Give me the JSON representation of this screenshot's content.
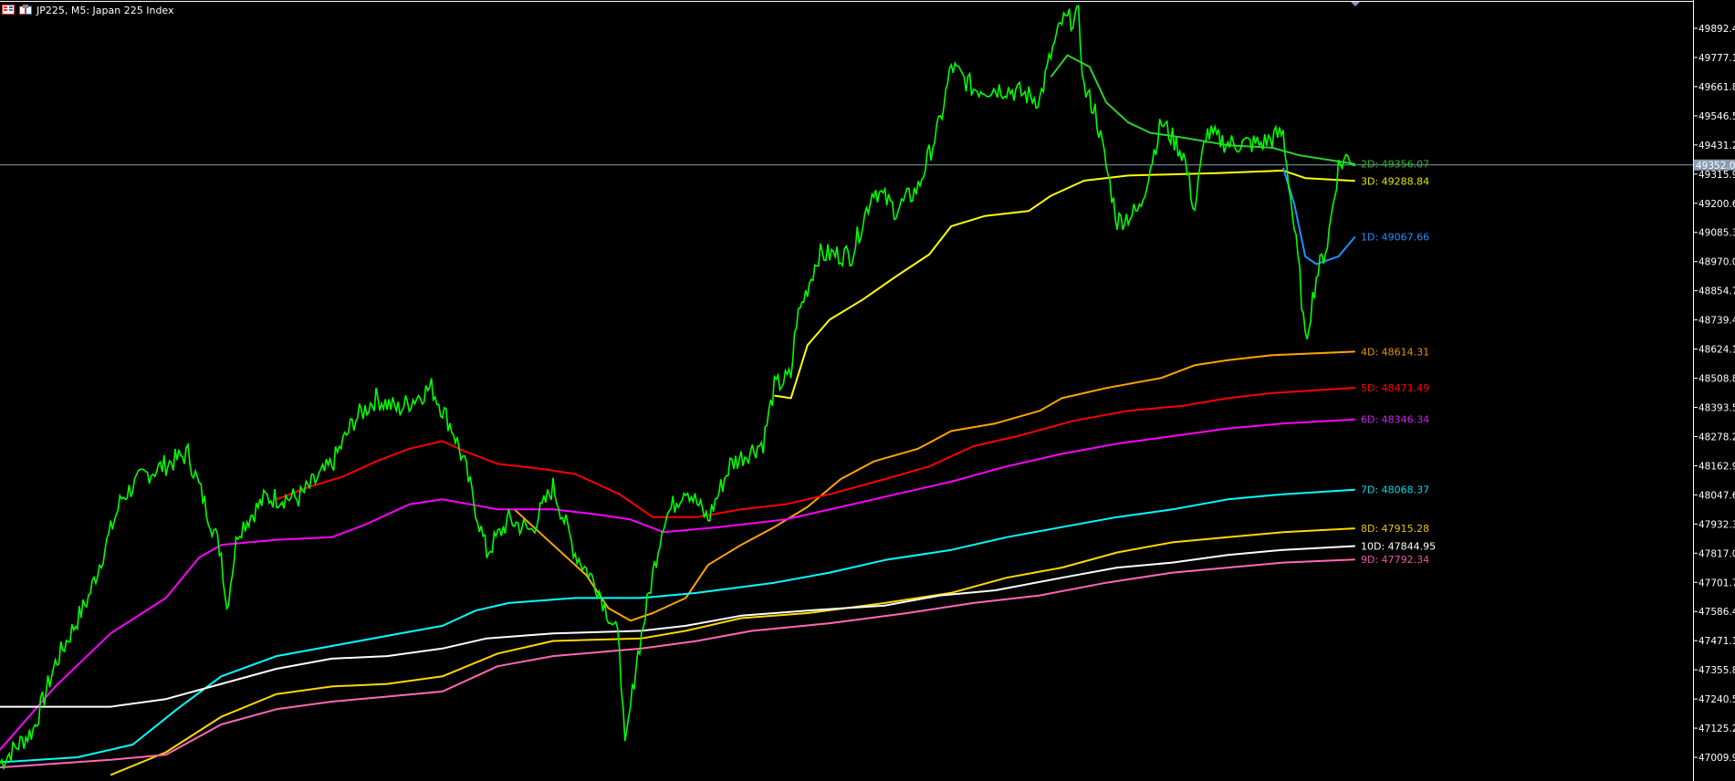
{
  "window": {
    "title": "JP225, M5:  Japan 225 Index"
  },
  "chart_data": {
    "type": "line",
    "title": "JP225, M5:  Japan 225 Index",
    "ylim": [
      46940,
      49990
    ],
    "grid": false,
    "y_ticks": [
      "49892.40",
      "49777.10",
      "49661.80",
      "49546.50",
      "49431.20",
      "49315.90",
      "49200.60",
      "49085.30",
      "48970.00",
      "48854.70",
      "48739.40",
      "48624.10",
      "48508.80",
      "48393.50",
      "48278.20",
      "48162.90",
      "48047.60",
      "47932.30",
      "47817.00",
      "47701.70",
      "47586.40",
      "47471.10",
      "47355.80",
      "47240.50",
      "47125.20",
      "47009.90"
    ],
    "current_price": {
      "label": "49352.00",
      "value": 49352.0,
      "color": "#8a9bb0"
    },
    "price": {
      "color": "#00ff00",
      "points": [
        [
          0,
          46987
        ],
        [
          6,
          47118
        ],
        [
          10,
          47380
        ],
        [
          16,
          47643
        ],
        [
          22,
          48036
        ],
        [
          26,
          48124
        ],
        [
          30,
          48167
        ],
        [
          34,
          48211
        ],
        [
          38,
          47949
        ],
        [
          40,
          47818
        ],
        [
          41,
          47599
        ],
        [
          43,
          47905
        ],
        [
          48,
          48036
        ],
        [
          54,
          48036
        ],
        [
          60,
          48167
        ],
        [
          64,
          48342
        ],
        [
          68,
          48430
        ],
        [
          72,
          48386
        ],
        [
          78,
          48473
        ],
        [
          82,
          48299
        ],
        [
          84,
          48167
        ],
        [
          88,
          47818
        ],
        [
          92,
          47949
        ],
        [
          96,
          47905
        ],
        [
          100,
          48080
        ],
        [
          104,
          47818
        ],
        [
          108,
          47686
        ],
        [
          112,
          47468
        ],
        [
          113,
          47030
        ],
        [
          115,
          47380
        ],
        [
          118,
          47730
        ],
        [
          120,
          47949
        ],
        [
          124,
          48080
        ],
        [
          128,
          47949
        ],
        [
          132,
          48167
        ],
        [
          138,
          48255
        ],
        [
          140,
          48473
        ],
        [
          143,
          48517
        ],
        [
          144,
          48736
        ],
        [
          148,
          48998
        ],
        [
          154,
          48998
        ],
        [
          158,
          49261
        ],
        [
          162,
          49173
        ],
        [
          166,
          49261
        ],
        [
          170,
          49523
        ],
        [
          172,
          49742
        ],
        [
          176,
          49654
        ],
        [
          182,
          49654
        ],
        [
          188,
          49611
        ],
        [
          190,
          49786
        ],
        [
          192,
          49917
        ],
        [
          195,
          49938
        ],
        [
          196,
          49654
        ],
        [
          198,
          49567
        ],
        [
          200,
          49348
        ],
        [
          202,
          49129
        ],
        [
          206,
          49173
        ],
        [
          210,
          49523
        ],
        [
          214,
          49392
        ],
        [
          216,
          49173
        ],
        [
          218,
          49479
        ],
        [
          222,
          49436
        ],
        [
          228,
          49436
        ],
        [
          232,
          49479
        ],
        [
          235,
          48911
        ],
        [
          236,
          48648
        ],
        [
          238,
          48911
        ],
        [
          240,
          49042
        ],
        [
          242,
          49348
        ],
        [
          244,
          49392
        ],
        [
          245,
          49348
        ]
      ]
    },
    "series": [
      {
        "name": "2D",
        "label": "2D: 49356.07",
        "color": "#2fcf2f",
        "label_color": "#2fb82f",
        "points": [
          [
            190,
            49700
          ],
          [
            193,
            49786
          ],
          [
            197,
            49740
          ],
          [
            200,
            49600
          ],
          [
            204,
            49520
          ],
          [
            208,
            49479
          ],
          [
            214,
            49460
          ],
          [
            222,
            49430
          ],
          [
            230,
            49420
          ],
          [
            235,
            49390
          ],
          [
            245,
            49356
          ]
        ]
      },
      {
        "name": "3D",
        "label": "3D: 49288.84",
        "color": "#ffff00",
        "label_color": "#e6e600",
        "points": [
          [
            140,
            48440
          ],
          [
            143,
            48430
          ],
          [
            146,
            48640
          ],
          [
            150,
            48740
          ],
          [
            156,
            48820
          ],
          [
            162,
            48911
          ],
          [
            168,
            48998
          ],
          [
            172,
            49110
          ],
          [
            178,
            49150
          ],
          [
            186,
            49170
          ],
          [
            190,
            49230
          ],
          [
            196,
            49290
          ],
          [
            204,
            49310
          ],
          [
            220,
            49320
          ],
          [
            232,
            49330
          ],
          [
            236,
            49300
          ],
          [
            245,
            49289
          ]
        ]
      },
      {
        "name": "1D",
        "label": "1D: 49067.66",
        "color": "#1e90ff",
        "label_color": "#1e90ff",
        "points": [
          [
            232,
            49340
          ],
          [
            234,
            49200
          ],
          [
            236,
            48990
          ],
          [
            238,
            48960
          ],
          [
            242,
            48990
          ],
          [
            245,
            49068
          ]
        ]
      },
      {
        "name": "4D",
        "label": "4D: 48614.31",
        "color": "#ffa500",
        "label_color": "#e69500",
        "points": [
          [
            93,
            47990
          ],
          [
            100,
            47850
          ],
          [
            106,
            47730
          ],
          [
            110,
            47600
          ],
          [
            114,
            47550
          ],
          [
            118,
            47580
          ],
          [
            124,
            47640
          ],
          [
            128,
            47770
          ],
          [
            134,
            47850
          ],
          [
            140,
            47920
          ],
          [
            146,
            48000
          ],
          [
            152,
            48110
          ],
          [
            158,
            48180
          ],
          [
            166,
            48230
          ],
          [
            172,
            48300
          ],
          [
            180,
            48330
          ],
          [
            188,
            48380
          ],
          [
            192,
            48430
          ],
          [
            200,
            48470
          ],
          [
            210,
            48510
          ],
          [
            216,
            48560
          ],
          [
            222,
            48580
          ],
          [
            230,
            48600
          ],
          [
            245,
            48614
          ]
        ]
      },
      {
        "name": "5D",
        "label": "5D: 48471.49",
        "color": "#ff0000",
        "label_color": "#ff0000",
        "points": [
          [
            50,
            48030
          ],
          [
            56,
            48080
          ],
          [
            62,
            48120
          ],
          [
            68,
            48180
          ],
          [
            74,
            48230
          ],
          [
            80,
            48260
          ],
          [
            84,
            48220
          ],
          [
            90,
            48170
          ],
          [
            98,
            48150
          ],
          [
            104,
            48130
          ],
          [
            112,
            48050
          ],
          [
            118,
            47960
          ],
          [
            126,
            47960
          ],
          [
            134,
            47990
          ],
          [
            142,
            48010
          ],
          [
            150,
            48050
          ],
          [
            160,
            48110
          ],
          [
            168,
            48160
          ],
          [
            176,
            48240
          ],
          [
            184,
            48280
          ],
          [
            194,
            48340
          ],
          [
            204,
            48380
          ],
          [
            214,
            48400
          ],
          [
            222,
            48430
          ],
          [
            230,
            48450
          ],
          [
            245,
            48471
          ]
        ]
      },
      {
        "name": "6D",
        "label": "6D: 48346.34",
        "color": "#ff00ff",
        "label_color": "#cc22ee",
        "points": [
          [
            0,
            47040
          ],
          [
            10,
            47290
          ],
          [
            20,
            47500
          ],
          [
            30,
            47640
          ],
          [
            36,
            47800
          ],
          [
            40,
            47850
          ],
          [
            50,
            47870
          ],
          [
            60,
            47880
          ],
          [
            66,
            47930
          ],
          [
            74,
            48010
          ],
          [
            80,
            48030
          ],
          [
            90,
            47990
          ],
          [
            100,
            47990
          ],
          [
            108,
            47970
          ],
          [
            114,
            47950
          ],
          [
            120,
            47900
          ],
          [
            130,
            47920
          ],
          [
            142,
            47950
          ],
          [
            152,
            48000
          ],
          [
            162,
            48050
          ],
          [
            172,
            48100
          ],
          [
            182,
            48160
          ],
          [
            192,
            48210
          ],
          [
            202,
            48250
          ],
          [
            212,
            48280
          ],
          [
            222,
            48310
          ],
          [
            232,
            48330
          ],
          [
            245,
            48346
          ]
        ]
      },
      {
        "name": "7D",
        "label": "7D: 48068.37",
        "color": "#00ffff",
        "label_color": "#00d8e8",
        "points": [
          [
            0,
            46990
          ],
          [
            14,
            47010
          ],
          [
            24,
            47060
          ],
          [
            32,
            47200
          ],
          [
            40,
            47330
          ],
          [
            50,
            47410
          ],
          [
            60,
            47450
          ],
          [
            70,
            47490
          ],
          [
            80,
            47530
          ],
          [
            86,
            47590
          ],
          [
            92,
            47620
          ],
          [
            104,
            47640
          ],
          [
            116,
            47640
          ],
          [
            126,
            47660
          ],
          [
            140,
            47700
          ],
          [
            150,
            47740
          ],
          [
            160,
            47790
          ],
          [
            172,
            47830
          ],
          [
            182,
            47880
          ],
          [
            192,
            47920
          ],
          [
            202,
            47960
          ],
          [
            212,
            47990
          ],
          [
            222,
            48030
          ],
          [
            232,
            48050
          ],
          [
            245,
            48068
          ]
        ]
      },
      {
        "name": "8D",
        "label": "8D: 47915.28",
        "color": "#ffd700",
        "label_color": "#e6c200",
        "points": [
          [
            20,
            46940
          ],
          [
            30,
            47030
          ],
          [
            40,
            47170
          ],
          [
            50,
            47260
          ],
          [
            60,
            47290
          ],
          [
            70,
            47300
          ],
          [
            80,
            47330
          ],
          [
            90,
            47420
          ],
          [
            100,
            47470
          ],
          [
            116,
            47480
          ],
          [
            124,
            47510
          ],
          [
            134,
            47560
          ],
          [
            146,
            47580
          ],
          [
            160,
            47620
          ],
          [
            172,
            47660
          ],
          [
            182,
            47720
          ],
          [
            192,
            47760
          ],
          [
            202,
            47820
          ],
          [
            212,
            47860
          ],
          [
            222,
            47880
          ],
          [
            232,
            47900
          ],
          [
            245,
            47915
          ]
        ]
      },
      {
        "name": "10D",
        "label": "10D: 47844.95",
        "color": "#ffffff",
        "label_color": "#ffffff",
        "points": [
          [
            0,
            47210
          ],
          [
            20,
            47210
          ],
          [
            30,
            47240
          ],
          [
            40,
            47300
          ],
          [
            50,
            47360
          ],
          [
            60,
            47400
          ],
          [
            70,
            47410
          ],
          [
            80,
            47440
          ],
          [
            88,
            47480
          ],
          [
            100,
            47500
          ],
          [
            116,
            47510
          ],
          [
            124,
            47530
          ],
          [
            134,
            47570
          ],
          [
            146,
            47590
          ],
          [
            160,
            47610
          ],
          [
            170,
            47650
          ],
          [
            180,
            47670
          ],
          [
            192,
            47720
          ],
          [
            202,
            47760
          ],
          [
            212,
            47780
          ],
          [
            222,
            47810
          ],
          [
            232,
            47830
          ],
          [
            245,
            47845
          ]
        ]
      },
      {
        "name": "9D",
        "label": "9D: 47792.34",
        "color": "#ff69b4",
        "label_color": "#ee55aa",
        "points": [
          [
            0,
            46970
          ],
          [
            20,
            47000
          ],
          [
            30,
            47020
          ],
          [
            40,
            47140
          ],
          [
            50,
            47200
          ],
          [
            60,
            47230
          ],
          [
            70,
            47250
          ],
          [
            80,
            47270
          ],
          [
            90,
            47370
          ],
          [
            100,
            47410
          ],
          [
            116,
            47440
          ],
          [
            126,
            47470
          ],
          [
            136,
            47510
          ],
          [
            150,
            47540
          ],
          [
            164,
            47580
          ],
          [
            176,
            47620
          ],
          [
            188,
            47650
          ],
          [
            200,
            47700
          ],
          [
            212,
            47740
          ],
          [
            222,
            47760
          ],
          [
            232,
            47780
          ],
          [
            245,
            47792
          ]
        ]
      }
    ]
  }
}
